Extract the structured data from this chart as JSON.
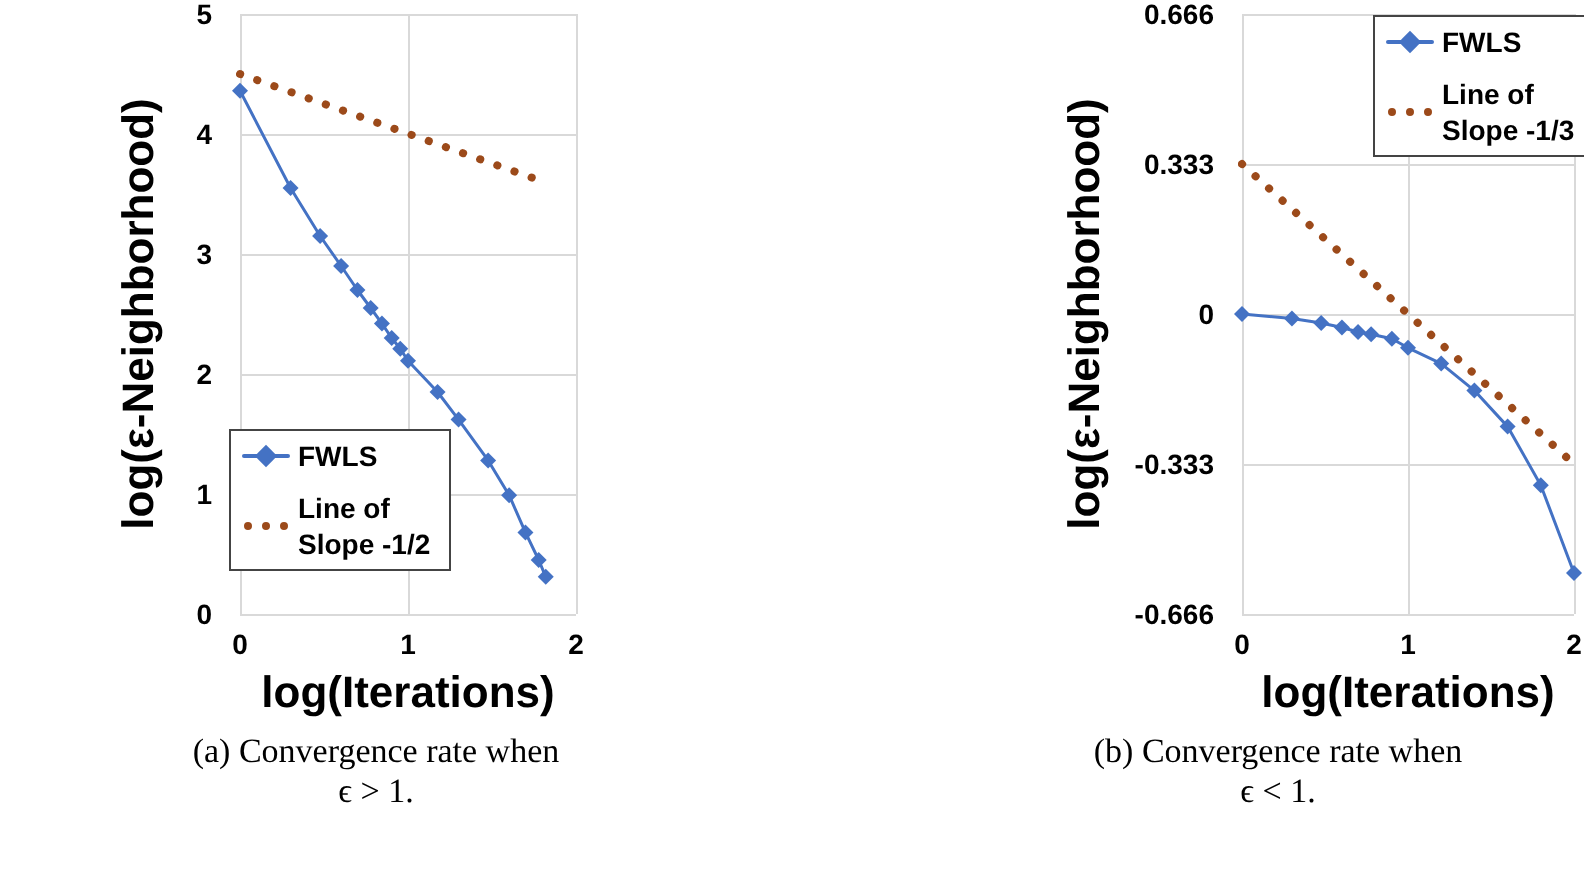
{
  "chart_data": [
    {
      "type": "line",
      "xlabel": "log(Iterations)",
      "ylabel": "log(ε-Neighborhood)",
      "xlim": [
        0,
        2
      ],
      "xticks": [
        0,
        1,
        2
      ],
      "ylim": [
        0,
        5
      ],
      "yticks": [
        0,
        1,
        2,
        3,
        4,
        5
      ],
      "grid": true,
      "legend": "bottom left",
      "annotations": [
        "(a) Convergence rate when ϵ > 1."
      ],
      "series": [
        {
          "name": "FWLS",
          "color": "#4472c4",
          "marker": "diamond",
          "line_style": "solid",
          "x": [
            0,
            0.301,
            0.477,
            0.602,
            0.699,
            0.778,
            0.845,
            0.903,
            0.954,
            1.0,
            1.176,
            1.301,
            1.477,
            1.602,
            1.699,
            1.778,
            1.82
          ],
          "values": [
            4.36,
            3.55,
            3.15,
            2.9,
            2.7,
            2.55,
            2.42,
            2.3,
            2.21,
            2.11,
            1.85,
            1.62,
            1.28,
            0.99,
            0.68,
            0.45,
            0.31
          ]
        },
        {
          "name": "Line of Slope -1/2",
          "color": "#9c4a1a",
          "marker": "none",
          "line_style": "dotted",
          "x": [
            0,
            1.75
          ],
          "values": [
            4.5,
            3.63
          ]
        }
      ]
    },
    {
      "type": "line",
      "xlabel": "log(Iterations)",
      "ylabel": "log(ε-Neighborhood)",
      "xlim": [
        0,
        2
      ],
      "xticks": [
        0,
        1,
        2
      ],
      "ylim": [
        -0.666,
        0.666
      ],
      "yticks": [
        -0.666,
        -0.333,
        0,
        0.333,
        0.666
      ],
      "grid": true,
      "legend": "top right",
      "annotations": [
        "(b) Convergence rate when ϵ < 1."
      ],
      "series": [
        {
          "name": "FWLS",
          "color": "#4472c4",
          "marker": "diamond",
          "line_style": "solid",
          "x": [
            0,
            0.301,
            0.477,
            0.602,
            0.699,
            0.778,
            0.903,
            1.0,
            1.2,
            1.4,
            1.6,
            1.8,
            2.0
          ],
          "values": [
            0,
            -0.01,
            -0.02,
            -0.03,
            -0.04,
            -0.045,
            -0.055,
            -0.075,
            -0.11,
            -0.17,
            -0.25,
            -0.38,
            -0.575
          ]
        },
        {
          "name": "Line of Slope -1/3",
          "color": "#9c4a1a",
          "marker": "none",
          "line_style": "dotted",
          "x": [
            0,
            2
          ],
          "values": [
            0.333,
            -0.333
          ]
        }
      ]
    }
  ]
}
